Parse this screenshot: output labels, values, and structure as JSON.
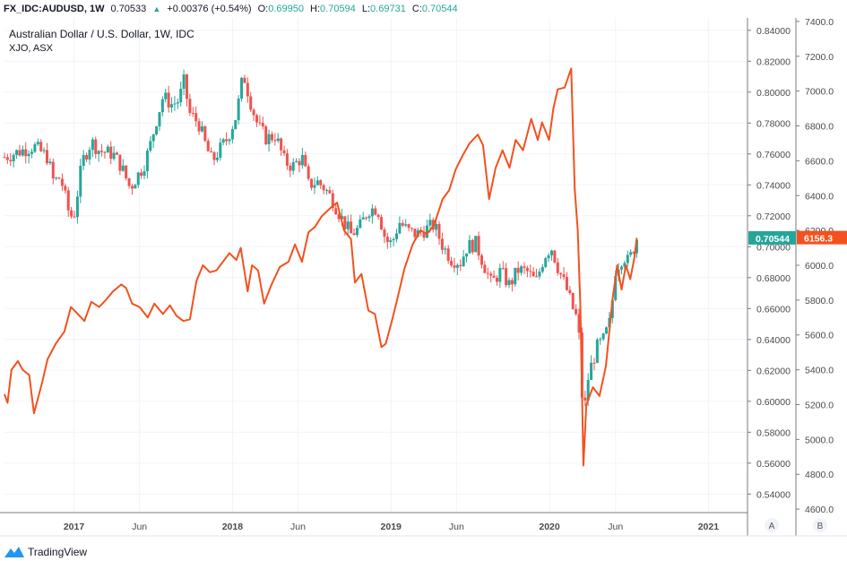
{
  "header": {
    "symbol": "FX_IDC:AUDUSD, 1W",
    "last": "0.70533",
    "change": "+0.00376 (+0.54%)",
    "open_label": "O:",
    "open": "0.69950",
    "high_label": "H:",
    "high": "0.70594",
    "low_label": "L:",
    "low": "0.69731",
    "close_label": "C:",
    "close": "0.70544"
  },
  "legend": {
    "title": "Australian Dollar / U.S. Dollar, 1W, IDC",
    "subtitle": "XJO, ASX"
  },
  "footer": {
    "brand": "TradingView"
  },
  "colors": {
    "up": "#26a69a",
    "down": "#ef5350",
    "line": "#f4511e",
    "grid": "#f0f3fa",
    "axis_text": "#4a4a4a"
  },
  "chart_data": {
    "type": "candlestick+line",
    "title": "Australian Dollar / U.S. Dollar, 1W, IDC",
    "x_range": [
      "2016-07-25",
      "2021-04-01"
    ],
    "x_ticks": [
      {
        "label": "2017",
        "date": "2017-01-01"
      },
      {
        "label": "Jun",
        "date": "2017-06-01"
      },
      {
        "label": "2018",
        "date": "2018-01-01"
      },
      {
        "label": "Jun",
        "date": "2018-06-01"
      },
      {
        "label": "2019",
        "date": "2019-01-01"
      },
      {
        "label": "Jun",
        "date": "2019-06-01"
      },
      {
        "label": "2020",
        "date": "2020-01-01"
      },
      {
        "label": "Jun",
        "date": "2020-06-01"
      },
      {
        "label": "2021",
        "date": "2021-01-01"
      }
    ],
    "left_axis_ticks": [
      "0.84000",
      "0.82000",
      "0.80000",
      "0.78000",
      "0.76000",
      "0.74000",
      "0.72000",
      "0.70000",
      "0.68000",
      "0.66000",
      "0.64000",
      "0.62000",
      "0.60000",
      "0.58000",
      "0.56000",
      "0.54000"
    ],
    "left_axis_range": [
      0.528,
      0.848
    ],
    "right_axis_ticks": [
      "7400.0",
      "7200.0",
      "7000.0",
      "6800.0",
      "6600.0",
      "6400.0",
      "6200.0",
      "6000.0",
      "5800.0",
      "5600.0",
      "5400.0",
      "5200.0",
      "5000.0",
      "4800.0",
      "4600.0"
    ],
    "right_axis_range": [
      4580,
      7420
    ],
    "last_price_label": "0.70544",
    "xjo_last_label": "6156.3",
    "scale_buttons": [
      "A",
      "B"
    ],
    "series": [
      {
        "name": "AUDUSD",
        "kind": "candlestick_close",
        "points": [
          [
            "2016-07-25",
            0.758
          ],
          [
            "2016-09-01",
            0.762
          ],
          [
            "2016-10-01",
            0.765
          ],
          [
            "2016-11-01",
            0.758
          ],
          [
            "2016-11-15",
            0.742
          ],
          [
            "2016-12-01",
            0.745
          ],
          [
            "2016-12-22",
            0.72
          ],
          [
            "2017-01-01",
            0.72
          ],
          [
            "2017-01-20",
            0.755
          ],
          [
            "2017-02-10",
            0.768
          ],
          [
            "2017-03-01",
            0.762
          ],
          [
            "2017-04-01",
            0.76
          ],
          [
            "2017-04-20",
            0.752
          ],
          [
            "2017-05-10",
            0.738
          ],
          [
            "2017-05-25",
            0.745
          ],
          [
            "2017-06-10",
            0.752
          ],
          [
            "2017-06-25",
            0.765
          ],
          [
            "2017-07-10",
            0.782
          ],
          [
            "2017-07-25",
            0.797
          ],
          [
            "2017-08-15",
            0.792
          ],
          [
            "2017-09-01",
            0.795
          ],
          [
            "2017-09-10",
            0.808
          ],
          [
            "2017-09-25",
            0.786
          ],
          [
            "2017-10-15",
            0.78
          ],
          [
            "2017-11-01",
            0.765
          ],
          [
            "2017-11-15",
            0.755
          ],
          [
            "2017-12-01",
            0.762
          ],
          [
            "2017-12-20",
            0.77
          ],
          [
            "2018-01-10",
            0.785
          ],
          [
            "2018-01-26",
            0.812
          ],
          [
            "2018-02-15",
            0.79
          ],
          [
            "2018-03-01",
            0.778
          ],
          [
            "2018-03-20",
            0.77
          ],
          [
            "2018-04-10",
            0.772
          ],
          [
            "2018-05-01",
            0.755
          ],
          [
            "2018-05-20",
            0.752
          ],
          [
            "2018-06-10",
            0.758
          ],
          [
            "2018-06-25",
            0.74
          ],
          [
            "2018-07-15",
            0.742
          ],
          [
            "2018-08-01",
            0.738
          ],
          [
            "2018-08-20",
            0.73
          ],
          [
            "2018-09-10",
            0.718
          ],
          [
            "2018-10-01",
            0.708
          ],
          [
            "2018-10-20",
            0.712
          ],
          [
            "2018-11-10",
            0.724
          ],
          [
            "2018-12-01",
            0.725
          ],
          [
            "2018-12-20",
            0.704
          ],
          [
            "2019-01-03",
            0.702
          ],
          [
            "2019-01-20",
            0.716
          ],
          [
            "2019-02-10",
            0.71
          ],
          [
            "2019-03-01",
            0.708
          ],
          [
            "2019-03-20",
            0.711
          ],
          [
            "2019-04-10",
            0.714
          ],
          [
            "2019-05-01",
            0.7
          ],
          [
            "2019-05-20",
            0.692
          ],
          [
            "2019-06-10",
            0.69
          ],
          [
            "2019-06-25",
            0.7
          ],
          [
            "2019-07-15",
            0.702
          ],
          [
            "2019-08-01",
            0.69
          ],
          [
            "2019-08-20",
            0.676
          ],
          [
            "2019-09-10",
            0.684
          ],
          [
            "2019-10-01",
            0.675
          ],
          [
            "2019-10-20",
            0.685
          ],
          [
            "2019-11-10",
            0.684
          ],
          [
            "2019-12-01",
            0.677
          ],
          [
            "2019-12-20",
            0.694
          ],
          [
            "2020-01-05",
            0.7
          ],
          [
            "2020-01-20",
            0.687
          ],
          [
            "2020-02-10",
            0.672
          ],
          [
            "2020-02-25",
            0.659
          ],
          [
            "2020-03-05",
            0.653
          ],
          [
            "2020-03-12",
            0.633
          ],
          [
            "2020-03-19",
            0.582
          ],
          [
            "2020-03-26",
            0.61
          ],
          [
            "2020-04-05",
            0.622
          ],
          [
            "2020-04-20",
            0.635
          ],
          [
            "2020-05-05",
            0.64
          ],
          [
            "2020-05-20",
            0.652
          ],
          [
            "2020-06-01",
            0.685
          ],
          [
            "2020-06-10",
            0.69
          ],
          [
            "2020-06-20",
            0.694
          ],
          [
            "2020-07-01",
            0.69
          ],
          [
            "2020-07-10",
            0.697
          ],
          [
            "2020-07-20",
            0.7054
          ]
        ]
      },
      {
        "name": "XJO",
        "kind": "line",
        "points": [
          [
            "2016-07-25",
            5260
          ],
          [
            "2016-08-01",
            5210
          ],
          [
            "2016-08-10",
            5400
          ],
          [
            "2016-08-25",
            5450
          ],
          [
            "2016-09-05",
            5400
          ],
          [
            "2016-09-20",
            5370
          ],
          [
            "2016-10-01",
            5150
          ],
          [
            "2016-10-20",
            5330
          ],
          [
            "2016-11-01",
            5460
          ],
          [
            "2016-11-20",
            5550
          ],
          [
            "2016-12-10",
            5620
          ],
          [
            "2016-12-25",
            5760
          ],
          [
            "2017-01-10",
            5720
          ],
          [
            "2017-01-25",
            5680
          ],
          [
            "2017-02-10",
            5790
          ],
          [
            "2017-02-28",
            5760
          ],
          [
            "2017-03-15",
            5800
          ],
          [
            "2017-04-01",
            5850
          ],
          [
            "2017-04-20",
            5890
          ],
          [
            "2017-05-01",
            5870
          ],
          [
            "2017-05-15",
            5780
          ],
          [
            "2017-06-01",
            5760
          ],
          [
            "2017-06-20",
            5700
          ],
          [
            "2017-07-05",
            5780
          ],
          [
            "2017-07-25",
            5720
          ],
          [
            "2017-08-10",
            5770
          ],
          [
            "2017-08-25",
            5710
          ],
          [
            "2017-09-10",
            5680
          ],
          [
            "2017-09-25",
            5690
          ],
          [
            "2017-10-10",
            5910
          ],
          [
            "2017-10-25",
            6000
          ],
          [
            "2017-11-10",
            5960
          ],
          [
            "2017-11-25",
            5970
          ],
          [
            "2017-12-10",
            6020
          ],
          [
            "2017-12-25",
            6070
          ],
          [
            "2018-01-10",
            6030
          ],
          [
            "2018-01-20",
            6100
          ],
          [
            "2018-02-05",
            5850
          ],
          [
            "2018-02-15",
            6000
          ],
          [
            "2018-03-01",
            5970
          ],
          [
            "2018-03-15",
            5780
          ],
          [
            "2018-04-01",
            5890
          ],
          [
            "2018-04-20",
            5990
          ],
          [
            "2018-05-10",
            6020
          ],
          [
            "2018-05-25",
            6120
          ],
          [
            "2018-06-10",
            6020
          ],
          [
            "2018-06-25",
            6190
          ],
          [
            "2018-07-10",
            6220
          ],
          [
            "2018-07-25",
            6280
          ],
          [
            "2018-08-15",
            6330
          ],
          [
            "2018-08-30",
            6360
          ],
          [
            "2018-09-15",
            6200
          ],
          [
            "2018-10-01",
            6150
          ],
          [
            "2018-10-10",
            5900
          ],
          [
            "2018-10-25",
            5950
          ],
          [
            "2018-11-10",
            5740
          ],
          [
            "2018-11-25",
            5720
          ],
          [
            "2018-12-10",
            5530
          ],
          [
            "2018-12-20",
            5550
          ],
          [
            "2019-01-03",
            5680
          ],
          [
            "2019-01-15",
            5800
          ],
          [
            "2019-02-01",
            5980
          ],
          [
            "2019-02-20",
            6120
          ],
          [
            "2019-03-10",
            6200
          ],
          [
            "2019-03-25",
            6180
          ],
          [
            "2019-04-10",
            6230
          ],
          [
            "2019-04-30",
            6380
          ],
          [
            "2019-05-15",
            6430
          ],
          [
            "2019-05-30",
            6550
          ],
          [
            "2019-06-15",
            6630
          ],
          [
            "2019-07-01",
            6700
          ],
          [
            "2019-07-20",
            6750
          ],
          [
            "2019-08-01",
            6690
          ],
          [
            "2019-08-15",
            6380
          ],
          [
            "2019-08-30",
            6560
          ],
          [
            "2019-09-15",
            6660
          ],
          [
            "2019-10-01",
            6560
          ],
          [
            "2019-10-15",
            6720
          ],
          [
            "2019-11-01",
            6660
          ],
          [
            "2019-11-20",
            6840
          ],
          [
            "2019-12-05",
            6720
          ],
          [
            "2019-12-15",
            6820
          ],
          [
            "2019-12-31",
            6720
          ],
          [
            "2020-01-10",
            6900
          ],
          [
            "2020-01-20",
            7010
          ],
          [
            "2020-02-05",
            7020
          ],
          [
            "2020-02-20",
            7130
          ],
          [
            "2020-02-28",
            6440
          ],
          [
            "2020-03-06",
            6200
          ],
          [
            "2020-03-12",
            5770
          ],
          [
            "2020-03-19",
            4850
          ],
          [
            "2020-03-26",
            5200
          ],
          [
            "2020-04-10",
            5300
          ],
          [
            "2020-04-25",
            5250
          ],
          [
            "2020-05-10",
            5420
          ],
          [
            "2020-05-25",
            5800
          ],
          [
            "2020-06-05",
            6000
          ],
          [
            "2020-06-15",
            5860
          ],
          [
            "2020-06-25",
            6000
          ],
          [
            "2020-07-05",
            5920
          ],
          [
            "2020-07-15",
            6050
          ],
          [
            "2020-07-20",
            6156.3
          ]
        ]
      }
    ]
  }
}
